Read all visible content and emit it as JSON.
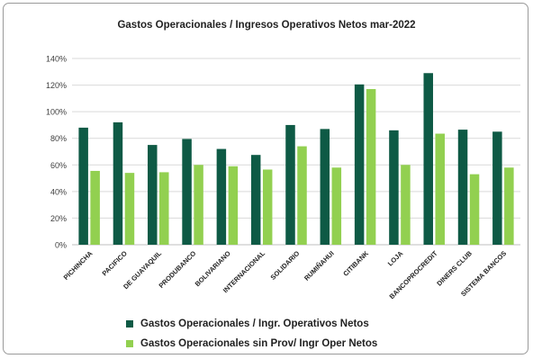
{
  "chart_data": {
    "type": "bar",
    "title": "Gastos Operacionales  / Ingresos Operativos Netos  mar-2022",
    "categories": [
      "PICHINCHA",
      "PACIFICO",
      "DE GUAYAQUIL",
      "PRODUBANCO",
      "BOLIVARIANO",
      "INTERNACIONAL",
      "SOLIDARIO",
      "RUMIÑAHUI",
      "CITIBANK",
      "LOJA",
      "BANCOPROCREDIT",
      "DINERS CLUB",
      "SISTEMA BANCOS"
    ],
    "series": [
      {
        "name": "Gastos Operacionales / Ingr. Operativos Netos",
        "color": "#0e5a45",
        "values": [
          88,
          92,
          75,
          79.5,
          72,
          67.5,
          90,
          87,
          120.5,
          86,
          129,
          86.5,
          85
        ]
      },
      {
        "name": "Gastos Operacionales sin Prov/ Ingr Oper Netos",
        "color": "#92d050",
        "values": [
          55.5,
          54,
          54.5,
          60,
          59,
          56.5,
          74,
          58,
          117,
          60,
          83.5,
          53,
          58
        ]
      }
    ],
    "ylim": [
      0,
      140
    ],
    "yticks": [
      "0%",
      "20%",
      "40%",
      "60%",
      "80%",
      "100%",
      "120%",
      "140%"
    ],
    "grid": true,
    "legend_position": "bottom-left"
  }
}
